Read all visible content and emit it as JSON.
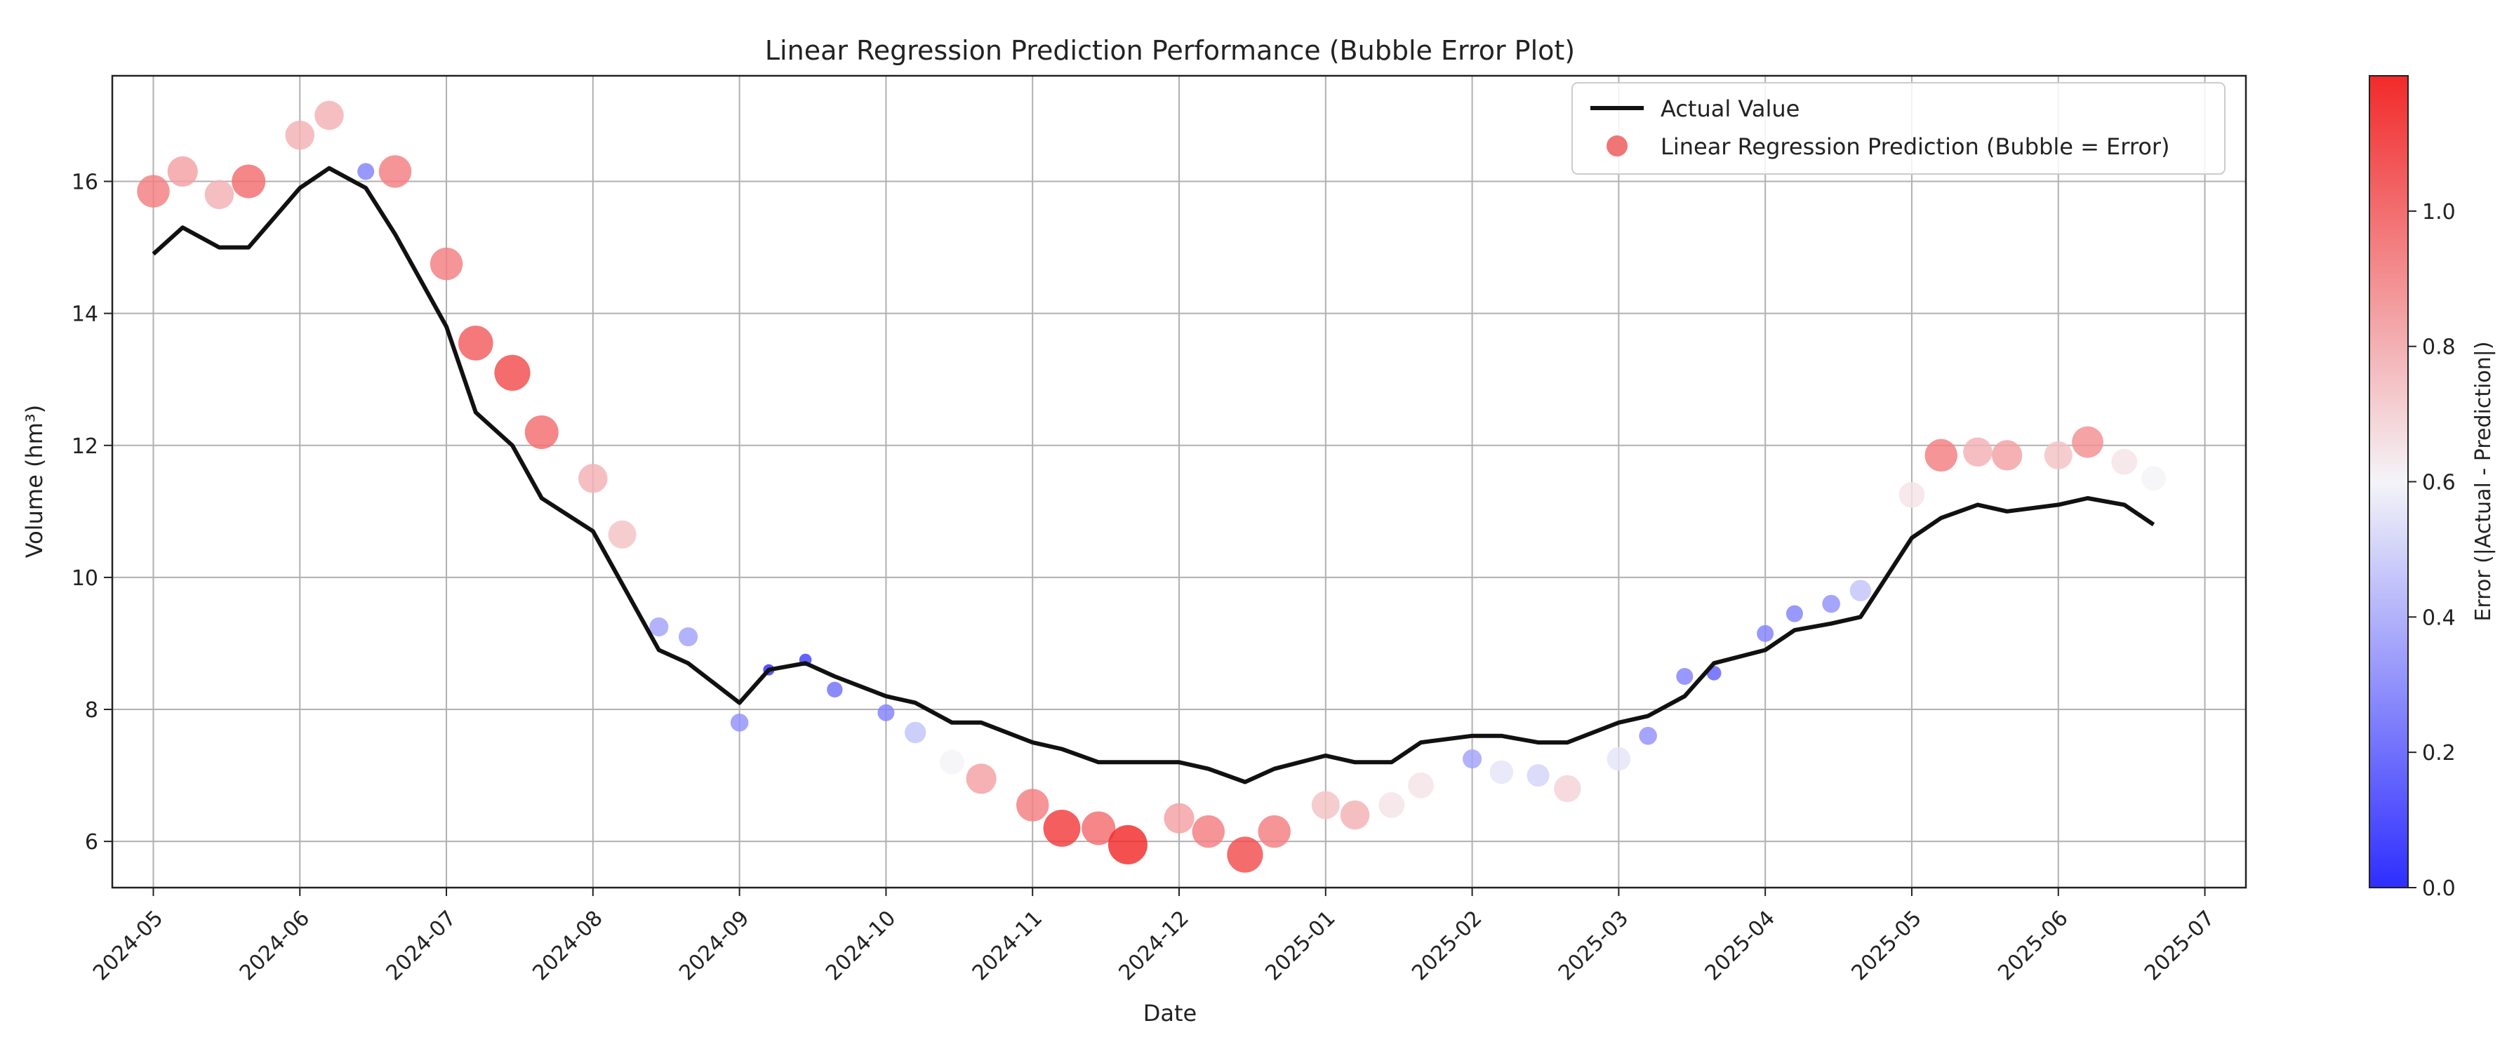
{
  "chart_data": {
    "type": "scatter",
    "title": "Linear Regression Prediction Performance (Bubble Error Plot)",
    "xlabel": "Date",
    "ylabel": "Volume (hm³)",
    "xlim": [
      -0.28,
      14.28
    ],
    "ylim": [
      5.3,
      17.6
    ],
    "grid": true,
    "x_ticks": [
      {
        "x": 0,
        "label": "2024-05"
      },
      {
        "x": 1,
        "label": "2024-06"
      },
      {
        "x": 2,
        "label": "2024-07"
      },
      {
        "x": 3,
        "label": "2024-08"
      },
      {
        "x": 4,
        "label": "2024-09"
      },
      {
        "x": 5,
        "label": "2024-10"
      },
      {
        "x": 6,
        "label": "2024-11"
      },
      {
        "x": 7,
        "label": "2024-12"
      },
      {
        "x": 8,
        "label": "2025-01"
      },
      {
        "x": 9,
        "label": "2025-02"
      },
      {
        "x": 10,
        "label": "2025-03"
      },
      {
        "x": 11,
        "label": "2025-04"
      },
      {
        "x": 12,
        "label": "2025-05"
      },
      {
        "x": 13,
        "label": "2025-06"
      },
      {
        "x": 14,
        "label": "2025-07"
      }
    ],
    "y_ticks": [
      {
        "y": 6,
        "label": "6"
      },
      {
        "y": 8,
        "label": "8"
      },
      {
        "y": 10,
        "label": "10"
      },
      {
        "y": 12,
        "label": "12"
      },
      {
        "y": 14,
        "label": "14"
      },
      {
        "y": 16,
        "label": "16"
      }
    ],
    "legend": {
      "position": "top-right",
      "line_label": "Actual Value",
      "bubble_label": "Linear Regression Prediction (Bubble = Error)"
    },
    "colorbar": {
      "label": "Error (|Actual - Prediction|)",
      "range": [
        0.0,
        1.2
      ],
      "ticks": [
        {
          "v": 0.0,
          "label": "0.0"
        },
        {
          "v": 0.2,
          "label": "0.2"
        },
        {
          "v": 0.4,
          "label": "0.4"
        },
        {
          "v": 0.6,
          "label": "0.6"
        },
        {
          "v": 0.8,
          "label": "0.8"
        },
        {
          "v": 1.0,
          "label": "1.0"
        }
      ],
      "colors": {
        "low": "#2e2eff",
        "mid": "#f4f4f8",
        "high": "#f22a2a"
      }
    },
    "series": [
      {
        "name": "Actual Value",
        "type": "line",
        "color": "#111111",
        "x": [
          0,
          0.2,
          0.45,
          0.65,
          1.0,
          1.2,
          1.45,
          1.65,
          2.0,
          2.2,
          2.45,
          2.65,
          3.0,
          3.2,
          3.45,
          3.65,
          4.0,
          4.2,
          4.45,
          4.65,
          5.0,
          5.2,
          5.45,
          5.65,
          6.0,
          6.2,
          6.45,
          6.65,
          7.0,
          7.2,
          7.45,
          7.65,
          8.0,
          8.2,
          8.45,
          8.65,
          9.0,
          9.2,
          9.45,
          9.65,
          10.0,
          10.2,
          10.45,
          10.65,
          11.0,
          11.2,
          11.45,
          11.65,
          12.0,
          12.2,
          12.45,
          12.65,
          13.0,
          13.2,
          13.45,
          13.65
        ],
        "y": [
          14.9,
          15.3,
          15.0,
          15.0,
          15.9,
          16.2,
          15.9,
          15.2,
          13.8,
          12.5,
          12.0,
          11.2,
          10.7,
          9.9,
          8.9,
          8.7,
          8.1,
          8.6,
          8.7,
          8.5,
          8.2,
          8.1,
          7.8,
          7.8,
          7.5,
          7.4,
          7.2,
          7.2,
          7.2,
          7.1,
          6.9,
          7.1,
          7.3,
          7.2,
          7.2,
          7.5,
          7.6,
          7.6,
          7.5,
          7.5,
          7.8,
          7.9,
          8.2,
          8.7,
          8.9,
          9.2,
          9.3,
          9.4,
          10.6,
          10.9,
          11.1,
          11.0,
          11.1,
          11.2,
          11.1,
          10.8
        ]
      },
      {
        "name": "Linear Regression Prediction",
        "type": "bubble",
        "x": [
          0,
          0.2,
          0.45,
          0.65,
          1.0,
          1.2,
          1.45,
          1.65,
          2.0,
          2.2,
          2.45,
          2.65,
          3.0,
          3.2,
          3.45,
          3.65,
          4.0,
          4.2,
          4.45,
          4.65,
          5.0,
          5.2,
          5.45,
          5.65,
          6.0,
          6.2,
          6.45,
          6.65,
          7.0,
          7.2,
          7.45,
          7.65,
          8.0,
          8.2,
          8.45,
          8.65,
          9.0,
          9.2,
          9.45,
          9.65,
          10.0,
          10.2,
          10.45,
          10.65,
          11.0,
          11.2,
          11.45,
          11.65,
          12.0,
          12.2,
          12.45,
          12.65,
          13.0,
          13.2,
          13.45,
          13.65
        ],
        "y": [
          15.85,
          16.15,
          15.8,
          16.0,
          16.7,
          17.0,
          16.15,
          16.15,
          14.75,
          13.55,
          13.1,
          12.2,
          11.5,
          10.65,
          9.25,
          9.1,
          7.8,
          8.6,
          8.75,
          8.3,
          7.95,
          7.65,
          7.2,
          6.95,
          6.55,
          6.2,
          6.2,
          5.95,
          6.35,
          6.15,
          5.8,
          6.15,
          6.55,
          6.4,
          6.55,
          6.85,
          7.25,
          7.05,
          7.0,
          6.8,
          7.25,
          7.6,
          8.5,
          8.55,
          9.15,
          9.45,
          9.6,
          9.8,
          11.25,
          11.85,
          11.9,
          11.85,
          11.85,
          12.05,
          11.75,
          11.5
        ],
        "error": [
          0.95,
          0.85,
          0.8,
          1.0,
          0.8,
          0.8,
          0.25,
          0.95,
          0.95,
          1.05,
          1.1,
          1.0,
          0.8,
          0.75,
          0.35,
          0.35,
          0.3,
          0.0,
          0.05,
          0.2,
          0.25,
          0.45,
          0.6,
          0.85,
          0.95,
          1.15,
          1.0,
          1.25,
          0.85,
          0.95,
          1.1,
          0.95,
          0.75,
          0.8,
          0.65,
          0.65,
          0.35,
          0.55,
          0.5,
          0.7,
          0.55,
          0.3,
          0.25,
          0.15,
          0.25,
          0.25,
          0.3,
          0.45,
          0.65,
          0.95,
          0.8,
          0.85,
          0.75,
          0.9,
          0.65,
          0.6
        ]
      }
    ]
  }
}
